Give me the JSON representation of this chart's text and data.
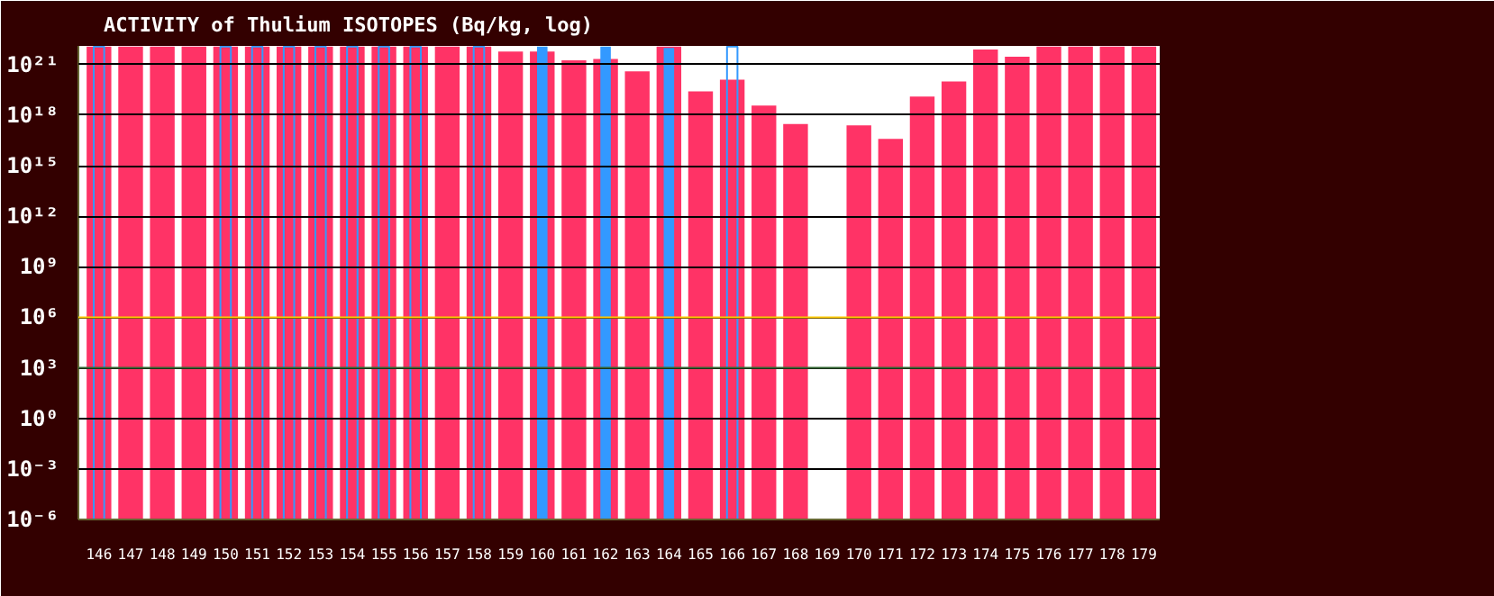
{
  "chart_data": {
    "type": "bar",
    "title": "ACTIVITY of Thulium ISOTOPES (Bq/kg, log)",
    "categories": [
      "146",
      "147",
      "148",
      "149",
      "150",
      "151",
      "152",
      "153",
      "154",
      "155",
      "156",
      "157",
      "158",
      "159",
      "160",
      "161",
      "162",
      "163",
      "164",
      "165",
      "166",
      "167",
      "168",
      "169",
      "170",
      "171",
      "172",
      "173",
      "174",
      "175",
      "176",
      "177",
      "178",
      "179"
    ],
    "series": [
      {
        "color": "#ff3366",
        "values": [
          1.2e+22,
          1.2e+22,
          1.2e+22,
          1.2e+22,
          1.2e+22,
          1.2e+22,
          1.2e+22,
          1.2e+22,
          1.2e+22,
          1.2e+22,
          1.2e+22,
          1.2e+22,
          1.2e+22,
          6e+21,
          6e+21,
          1.8e+21,
          2.2e+21,
          4e+20,
          1.2e+22,
          2.6e+19,
          1.3e+20,
          3.7e+18,
          3e+17,
          null,
          2.5e+17,
          4e+16,
          1.3e+19,
          1e+20,
          8e+21,
          3e+21,
          1.2e+22,
          1.2e+22,
          1.2e+22,
          1.2e+22
        ]
      },
      {
        "color": "#3399ff",
        "line_style": "solid",
        "values": [
          1.2e+22,
          null,
          null,
          null,
          1.2e+22,
          1.2e+22,
          1.2e+22,
          1.2e+22,
          1.2e+22,
          1.2e+22,
          1.2e+22,
          null,
          1.2e+22,
          null,
          null,
          null,
          null,
          null,
          null,
          null,
          1.2e+22,
          null,
          null,
          null,
          null,
          null,
          null,
          null,
          null,
          null,
          null,
          null,
          null,
          null
        ]
      },
      {
        "color": "#3399ff",
        "values": [
          null,
          null,
          null,
          null,
          null,
          null,
          null,
          null,
          null,
          null,
          null,
          null,
          null,
          null,
          1.2e+22,
          null,
          1.2e+22,
          null,
          1e+22,
          null,
          null,
          null,
          null,
          null,
          null,
          null,
          null,
          null,
          null,
          null,
          null,
          null,
          null,
          null
        ]
      }
    ],
    "log": true,
    "ylim": [
      1e-06,
      1.3e+22
    ],
    "yticks": [
      {
        "value": 1e-06,
        "label": "10⁻⁶"
      },
      {
        "value": 0.001,
        "label": "10⁻³"
      },
      {
        "value": 1,
        "label": "10⁰"
      },
      {
        "value": 1000.0,
        "label": "10³"
      },
      {
        "value": 1000000.0,
        "label": "10⁶"
      },
      {
        "value": 1000000000.0,
        "label": "10⁹"
      },
      {
        "value": 1000000000000.0,
        "label": "10¹²"
      },
      {
        "value": 1000000000000000.0,
        "label": "10¹⁵"
      },
      {
        "value": 1e+18,
        "label": "10¹⁸"
      },
      {
        "value": 1e+21,
        "label": "10²¹"
      }
    ],
    "ref_lines": [
      {
        "axis": "y",
        "value": 1000000.0,
        "color": "#ffcc00"
      },
      {
        "axis": "y",
        "value": 1000.0,
        "color": "#336633"
      }
    ],
    "grid": "y"
  }
}
